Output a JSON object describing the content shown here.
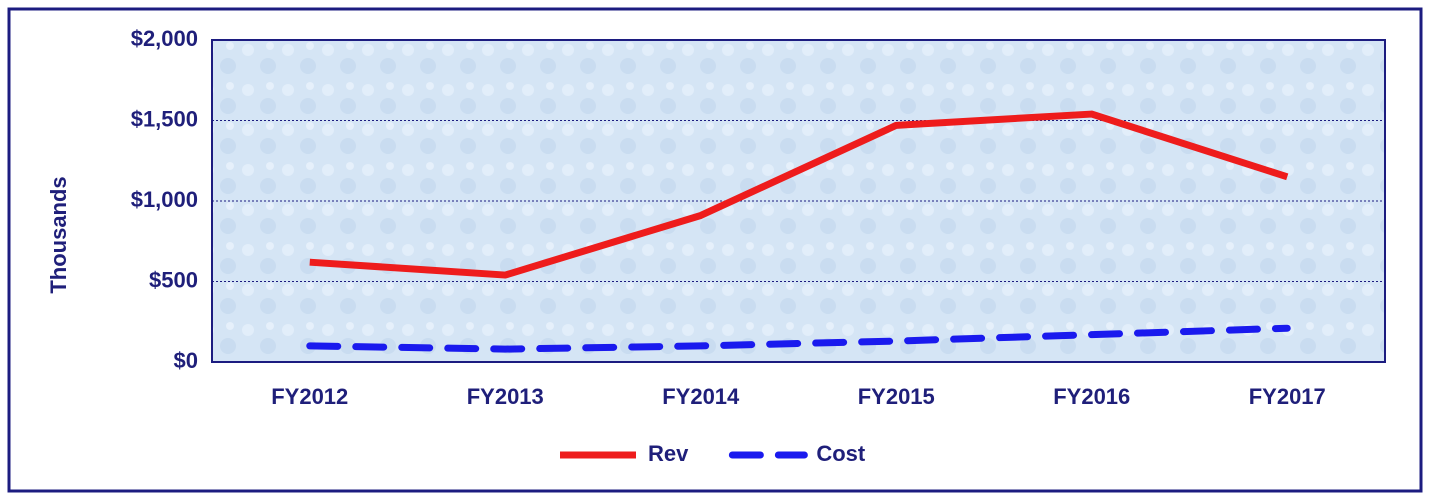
{
  "chart_data": {
    "type": "line",
    "y_label": "Thousands",
    "categories": [
      "FY2012",
      "FY2013",
      "FY2014",
      "FY2015",
      "FY2016",
      "FY2017"
    ],
    "series": [
      {
        "name": "Rev",
        "color": "#ee1c1c",
        "dash": false,
        "values": [
          620,
          540,
          910,
          1470,
          1540,
          1150
        ]
      },
      {
        "name": "Cost",
        "color": "#1a1aee",
        "dash": true,
        "values": [
          100,
          80,
          100,
          130,
          170,
          210
        ]
      }
    ],
    "ylim": [
      0,
      2000
    ],
    "yticks": [
      {
        "value": 0,
        "label": "$0"
      },
      {
        "value": 500,
        "label": "$500"
      },
      {
        "value": 1000,
        "label": "$1,000"
      },
      {
        "value": 1500,
        "label": "$1,500"
      },
      {
        "value": 2000,
        "label": "$2,000"
      }
    ],
    "grid": true,
    "legend": "bottom"
  }
}
